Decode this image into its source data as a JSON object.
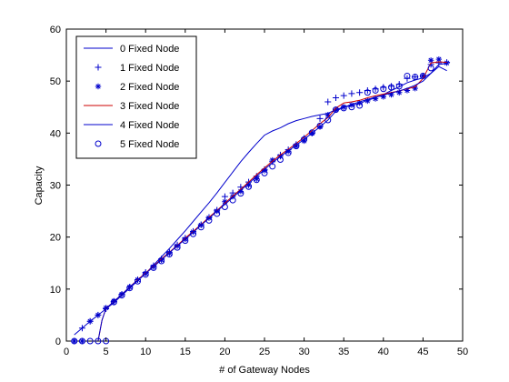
{
  "chart_data": {
    "type": "line",
    "title": "",
    "xlabel": "# of Gateway Nodes",
    "ylabel": "Capacity",
    "xlim": [
      0,
      50
    ],
    "ylim": [
      0,
      60
    ],
    "xticks": [
      0,
      5,
      10,
      15,
      20,
      25,
      30,
      35,
      40,
      45,
      50
    ],
    "yticks": [
      0,
      10,
      20,
      30,
      40,
      50,
      60
    ],
    "grid": false,
    "legend_position": "top-left",
    "series": [
      {
        "name": "0 Fixed Node",
        "style": "line",
        "color": "#0000cc",
        "points": [
          [
            1,
            1.2
          ],
          [
            2,
            2.5
          ],
          [
            3,
            3.8
          ],
          [
            4,
            5.0
          ],
          [
            5,
            6.2
          ],
          [
            6,
            7.4
          ],
          [
            7,
            8.8
          ],
          [
            8,
            10.2
          ],
          [
            9,
            11.6
          ],
          [
            10,
            13.0
          ],
          [
            11,
            14.6
          ],
          [
            12,
            16.2
          ],
          [
            13,
            17.8
          ],
          [
            14,
            19.5
          ],
          [
            15,
            21.2
          ],
          [
            16,
            23.0
          ],
          [
            17,
            24.8
          ],
          [
            18,
            26.6
          ],
          [
            19,
            28.5
          ],
          [
            20,
            30.5
          ],
          [
            21,
            32.5
          ],
          [
            22,
            34.5
          ],
          [
            23,
            36.3
          ],
          [
            24,
            38.0
          ],
          [
            25,
            39.6
          ],
          [
            26,
            40.4
          ],
          [
            27,
            41.0
          ],
          [
            28,
            41.8
          ],
          [
            29,
            42.4
          ],
          [
            30,
            42.8
          ],
          [
            31,
            43.2
          ],
          [
            32,
            43.5
          ],
          [
            33,
            43.8
          ],
          [
            34,
            44.5
          ],
          [
            35,
            45.0
          ],
          [
            36,
            45.3
          ],
          [
            37,
            45.7
          ],
          [
            38,
            46.3
          ],
          [
            39,
            46.8
          ],
          [
            40,
            47.4
          ],
          [
            41,
            48.2
          ],
          [
            42,
            48.9
          ],
          [
            43,
            49.7
          ],
          [
            44,
            50.2
          ],
          [
            45,
            50.6
          ],
          [
            46,
            51.5
          ],
          [
            47,
            52.8
          ],
          [
            48,
            52.0
          ]
        ]
      },
      {
        "name": "1 Fixed Node",
        "style": "marker-plus",
        "color": "#0000cc",
        "points": [
          [
            1,
            0
          ],
          [
            2,
            2.5
          ],
          [
            3,
            3.8
          ],
          [
            4,
            5.0
          ],
          [
            5,
            6.2
          ],
          [
            6,
            7.6
          ],
          [
            7,
            9.0
          ],
          [
            8,
            10.4
          ],
          [
            9,
            11.8
          ],
          [
            10,
            13.2
          ],
          [
            11,
            14.5
          ],
          [
            12,
            15.8
          ],
          [
            13,
            17.1
          ],
          [
            14,
            18.5
          ],
          [
            15,
            19.8
          ],
          [
            16,
            21.1
          ],
          [
            17,
            22.4
          ],
          [
            18,
            23.8
          ],
          [
            19,
            25.2
          ],
          [
            20,
            27.8
          ],
          [
            21,
            28.5
          ],
          [
            22,
            29.6
          ],
          [
            23,
            30.6
          ],
          [
            24,
            31.7
          ],
          [
            25,
            33.0
          ],
          [
            26,
            34.5
          ],
          [
            27,
            35.8
          ],
          [
            28,
            36.8
          ],
          [
            29,
            37.8
          ],
          [
            30,
            39.0
          ],
          [
            31,
            40.0
          ],
          [
            32,
            42.8
          ],
          [
            33,
            46.0
          ],
          [
            34,
            46.8
          ],
          [
            35,
            47.2
          ],
          [
            36,
            47.6
          ],
          [
            37,
            47.8
          ],
          [
            38,
            48.2
          ],
          [
            39,
            48.5
          ],
          [
            40,
            48.8
          ],
          [
            41,
            49.0
          ],
          [
            42,
            49.4
          ],
          [
            43,
            50.5
          ],
          [
            44,
            50.8
          ],
          [
            45,
            51.0
          ],
          [
            46,
            53.2
          ],
          [
            47,
            53.5
          ],
          [
            48,
            53.6
          ]
        ]
      },
      {
        "name": "2 Fixed Node",
        "style": "marker-star",
        "color": "#0000cc",
        "points": [
          [
            1,
            0
          ],
          [
            2,
            0
          ],
          [
            3,
            3.8
          ],
          [
            4,
            5.0
          ],
          [
            5,
            6.4
          ],
          [
            6,
            7.7
          ],
          [
            7,
            9.0
          ],
          [
            8,
            10.4
          ],
          [
            9,
            11.8
          ],
          [
            10,
            13.0
          ],
          [
            11,
            14.3
          ],
          [
            12,
            15.6
          ],
          [
            13,
            16.9
          ],
          [
            14,
            18.3
          ],
          [
            15,
            19.6
          ],
          [
            16,
            21.0
          ],
          [
            17,
            22.3
          ],
          [
            18,
            23.7
          ],
          [
            19,
            25.0
          ],
          [
            20,
            26.8
          ],
          [
            21,
            27.8
          ],
          [
            22,
            28.8
          ],
          [
            23,
            30.0
          ],
          [
            24,
            31.2
          ],
          [
            25,
            32.8
          ],
          [
            26,
            34.8
          ],
          [
            27,
            35.5
          ],
          [
            28,
            36.5
          ],
          [
            29,
            37.5
          ],
          [
            30,
            38.5
          ],
          [
            31,
            40.0
          ],
          [
            32,
            41.2
          ],
          [
            33,
            43.5
          ],
          [
            34,
            44.5
          ],
          [
            35,
            45.0
          ],
          [
            36,
            45.4
          ],
          [
            37,
            45.8
          ],
          [
            38,
            46.2
          ],
          [
            39,
            46.6
          ],
          [
            40,
            47.0
          ],
          [
            41,
            47.4
          ],
          [
            42,
            47.8
          ],
          [
            43,
            48.2
          ],
          [
            44,
            48.6
          ],
          [
            45,
            51.0
          ],
          [
            46,
            54.0
          ],
          [
            47,
            54.2
          ],
          [
            48,
            53.5
          ]
        ]
      },
      {
        "name": "3 Fixed Node",
        "style": "line",
        "color": "#cc0000",
        "points": [
          [
            4,
            0
          ],
          [
            4.5,
            4.0
          ],
          [
            5,
            6.3
          ],
          [
            6,
            7.6
          ],
          [
            7,
            9.0
          ],
          [
            8,
            10.4
          ],
          [
            9,
            11.8
          ],
          [
            10,
            13.1
          ],
          [
            11,
            14.4
          ],
          [
            12,
            15.8
          ],
          [
            13,
            17.1
          ],
          [
            14,
            18.4
          ],
          [
            15,
            19.8
          ],
          [
            16,
            21.1
          ],
          [
            17,
            22.4
          ],
          [
            18,
            23.8
          ],
          [
            19,
            25.1
          ],
          [
            20,
            26.5
          ],
          [
            21,
            27.9
          ],
          [
            22,
            29.2
          ],
          [
            23,
            30.6
          ],
          [
            24,
            32.0
          ],
          [
            25,
            33.3
          ],
          [
            26,
            34.6
          ],
          [
            27,
            35.8
          ],
          [
            28,
            36.9
          ],
          [
            29,
            38.0
          ],
          [
            30,
            39.2
          ],
          [
            31,
            40.5
          ],
          [
            32,
            41.8
          ],
          [
            33,
            43.0
          ],
          [
            34,
            44.8
          ],
          [
            35,
            45.8
          ],
          [
            36,
            46.0
          ],
          [
            37,
            46.3
          ],
          [
            38,
            46.8
          ],
          [
            39,
            47.2
          ],
          [
            40,
            47.5
          ],
          [
            41,
            47.8
          ],
          [
            42,
            48.1
          ],
          [
            43,
            48.5
          ],
          [
            44,
            48.9
          ],
          [
            45,
            50.5
          ],
          [
            46,
            53.5
          ],
          [
            47,
            53.7
          ],
          [
            48,
            53.6
          ]
        ]
      },
      {
        "name": "4 Fixed Node",
        "style": "line",
        "color": "#0000cc",
        "points": [
          [
            4,
            0
          ],
          [
            4.5,
            4.0
          ],
          [
            5,
            6.3
          ],
          [
            6,
            7.6
          ],
          [
            7,
            9.0
          ],
          [
            8,
            10.4
          ],
          [
            9,
            11.7
          ],
          [
            10,
            13.0
          ],
          [
            11,
            14.3
          ],
          [
            12,
            15.6
          ],
          [
            13,
            17.0
          ],
          [
            14,
            18.3
          ],
          [
            15,
            19.6
          ],
          [
            16,
            20.9
          ],
          [
            17,
            22.3
          ],
          [
            18,
            23.6
          ],
          [
            19,
            25.0
          ],
          [
            20,
            26.3
          ],
          [
            21,
            27.6
          ],
          [
            22,
            29.0
          ],
          [
            23,
            30.3
          ],
          [
            24,
            31.7
          ],
          [
            25,
            33.0
          ],
          [
            26,
            34.3
          ],
          [
            27,
            35.5
          ],
          [
            28,
            36.6
          ],
          [
            29,
            37.7
          ],
          [
            30,
            38.8
          ],
          [
            31,
            40.0
          ],
          [
            32,
            41.2
          ],
          [
            33,
            42.5
          ],
          [
            34,
            44.2
          ],
          [
            35,
            45.0
          ],
          [
            36,
            45.5
          ],
          [
            37,
            46.0
          ],
          [
            38,
            46.5
          ],
          [
            39,
            46.9
          ],
          [
            40,
            47.3
          ],
          [
            41,
            47.7
          ],
          [
            42,
            48.1
          ],
          [
            43,
            48.6
          ],
          [
            44,
            49.2
          ],
          [
            45,
            50.0
          ],
          [
            46,
            51.5
          ],
          [
            47,
            53.2
          ],
          [
            48,
            53.4
          ]
        ]
      },
      {
        "name": "5 Fixed Node",
        "style": "marker-circle",
        "color": "#0000cc",
        "points": [
          [
            1,
            0
          ],
          [
            2,
            0
          ],
          [
            3,
            0
          ],
          [
            4,
            0
          ],
          [
            5,
            0
          ],
          [
            6,
            7.5
          ],
          [
            7,
            8.8
          ],
          [
            8,
            10.2
          ],
          [
            9,
            11.5
          ],
          [
            10,
            12.8
          ],
          [
            11,
            14.1
          ],
          [
            12,
            15.4
          ],
          [
            13,
            16.7
          ],
          [
            14,
            18.0
          ],
          [
            15,
            19.3
          ],
          [
            16,
            20.6
          ],
          [
            17,
            21.9
          ],
          [
            18,
            23.2
          ],
          [
            19,
            24.5
          ],
          [
            20,
            25.8
          ],
          [
            21,
            27.1
          ],
          [
            22,
            28.4
          ],
          [
            23,
            29.7
          ],
          [
            24,
            31.0
          ],
          [
            25,
            32.3
          ],
          [
            26,
            33.6
          ],
          [
            27,
            34.9
          ],
          [
            28,
            36.2
          ],
          [
            29,
            37.5
          ],
          [
            30,
            38.8
          ],
          [
            31,
            40.1
          ],
          [
            32,
            41.4
          ],
          [
            33,
            42.5
          ],
          [
            34,
            44.5
          ],
          [
            35,
            44.8
          ],
          [
            36,
            45.0
          ],
          [
            37,
            45.3
          ],
          [
            38,
            47.8
          ],
          [
            39,
            48.2
          ],
          [
            40,
            48.5
          ],
          [
            41,
            48.8
          ],
          [
            42,
            49.0
          ],
          [
            43,
            51.0
          ],
          [
            44,
            50.8
          ],
          [
            45,
            51.0
          ],
          [
            46,
            52.5
          ]
        ]
      }
    ]
  }
}
